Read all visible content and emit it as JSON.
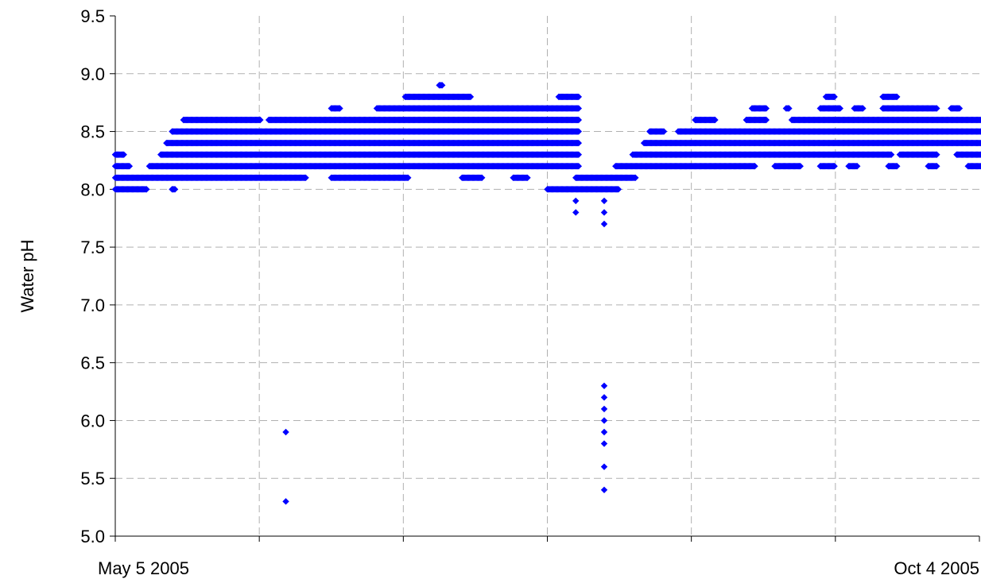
{
  "chart_data": {
    "type": "scatter",
    "title": "",
    "xlabel": "",
    "ylabel": "Water pH",
    "xlim": [
      "2005-05-05",
      "2005-10-04"
    ],
    "ylim": [
      5.0,
      9.5
    ],
    "yticks": [
      "5.0",
      "5.5",
      "6.0",
      "6.5",
      "7.0",
      "7.5",
      "8.0",
      "8.5",
      "9.0",
      "9.5"
    ],
    "xtick_labels": [
      {
        "date": "2005-05-05",
        "label": "May 5 2005"
      },
      {
        "date": "2005-10-04",
        "label": "Oct 4 2005"
      }
    ],
    "grid": true,
    "legend": "none",
    "marker_color": "#0000ff",
    "grid_color": "#b0b0b0",
    "bands": [
      {
        "y": 8.0,
        "ranges": [
          [
            "2005-05-05",
            "2005-05-10"
          ],
          [
            "2005-05-15",
            "2005-05-15"
          ],
          [
            "2005-07-20",
            "2005-08-01"
          ]
        ]
      },
      {
        "y": 8.1,
        "ranges": [
          [
            "2005-05-05",
            "2005-06-07"
          ],
          [
            "2005-06-12",
            "2005-06-25"
          ],
          [
            "2005-07-05",
            "2005-07-08"
          ],
          [
            "2005-07-14",
            "2005-07-16"
          ],
          [
            "2005-07-25",
            "2005-08-04"
          ]
        ]
      },
      {
        "y": 8.2,
        "ranges": [
          [
            "2005-05-05",
            "2005-05-07"
          ],
          [
            "2005-05-11",
            "2005-07-25"
          ],
          [
            "2005-08-01",
            "2005-08-25"
          ],
          [
            "2005-08-29",
            "2005-09-02"
          ],
          [
            "2005-09-06",
            "2005-09-08"
          ],
          [
            "2005-09-11",
            "2005-09-12"
          ],
          [
            "2005-09-18",
            "2005-09-19"
          ],
          [
            "2005-09-25",
            "2005-09-26"
          ],
          [
            "2005-10-02",
            "2005-10-04"
          ]
        ]
      },
      {
        "y": 8.3,
        "ranges": [
          [
            "2005-05-05",
            "2005-05-06"
          ],
          [
            "2005-05-13",
            "2005-07-25"
          ],
          [
            "2005-08-04",
            "2005-09-18"
          ],
          [
            "2005-09-20",
            "2005-09-26"
          ],
          [
            "2005-09-30",
            "2005-10-04"
          ]
        ]
      },
      {
        "y": 8.4,
        "ranges": [
          [
            "2005-05-14",
            "2005-07-25"
          ],
          [
            "2005-08-06",
            "2005-10-04"
          ]
        ]
      },
      {
        "y": 8.5,
        "ranges": [
          [
            "2005-05-15",
            "2005-07-25"
          ],
          [
            "2005-08-07",
            "2005-08-09"
          ],
          [
            "2005-08-12",
            "2005-10-04"
          ]
        ]
      },
      {
        "y": 8.6,
        "ranges": [
          [
            "2005-05-17",
            "2005-05-30"
          ],
          [
            "2005-06-01",
            "2005-07-25"
          ],
          [
            "2005-08-15",
            "2005-08-18"
          ],
          [
            "2005-08-24",
            "2005-08-27"
          ],
          [
            "2005-09-01",
            "2005-10-04"
          ]
        ]
      },
      {
        "y": 8.7,
        "ranges": [
          [
            "2005-06-12",
            "2005-06-13"
          ],
          [
            "2005-06-20",
            "2005-07-25"
          ],
          [
            "2005-08-25",
            "2005-08-27"
          ],
          [
            "2005-08-31",
            "2005-08-31"
          ],
          [
            "2005-09-06",
            "2005-09-09"
          ],
          [
            "2005-09-12",
            "2005-09-13"
          ],
          [
            "2005-09-17",
            "2005-09-26"
          ],
          [
            "2005-09-29",
            "2005-09-30"
          ]
        ]
      },
      {
        "y": 8.8,
        "ranges": [
          [
            "2005-06-25",
            "2005-07-06"
          ],
          [
            "2005-07-22",
            "2005-07-25"
          ],
          [
            "2005-09-07",
            "2005-09-08"
          ],
          [
            "2005-09-17",
            "2005-09-19"
          ]
        ]
      },
      {
        "y": 8.9,
        "ranges": [
          [
            "2005-07-01",
            "2005-07-01"
          ]
        ]
      }
    ],
    "points": [
      {
        "x": "2005-05-05",
        "y": 8.3
      },
      {
        "x": "2005-06-04",
        "y": 5.9
      },
      {
        "x": "2005-06-04",
        "y": 5.3
      },
      {
        "x": "2005-07-25",
        "y": 7.9
      },
      {
        "x": "2005-07-25",
        "y": 7.8
      },
      {
        "x": "2005-07-30",
        "y": 7.9
      },
      {
        "x": "2005-07-30",
        "y": 7.8
      },
      {
        "x": "2005-07-30",
        "y": 7.7
      },
      {
        "x": "2005-07-30",
        "y": 6.3
      },
      {
        "x": "2005-07-30",
        "y": 6.2
      },
      {
        "x": "2005-07-30",
        "y": 6.1
      },
      {
        "x": "2005-07-30",
        "y": 6.0
      },
      {
        "x": "2005-07-30",
        "y": 5.9
      },
      {
        "x": "2005-07-30",
        "y": 5.8
      },
      {
        "x": "2005-07-30",
        "y": 5.6
      },
      {
        "x": "2005-07-30",
        "y": 5.4
      }
    ]
  }
}
